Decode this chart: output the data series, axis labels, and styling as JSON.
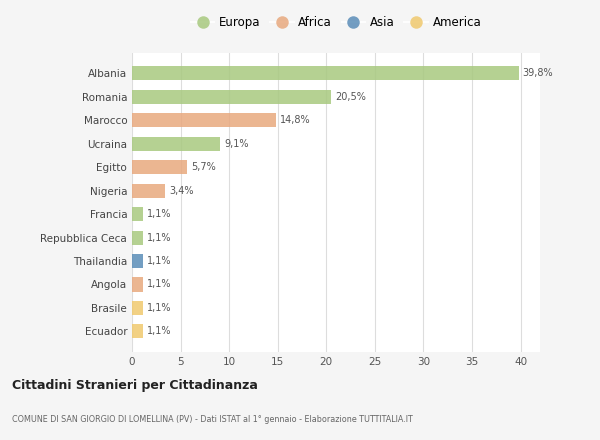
{
  "countries": [
    "Albania",
    "Romania",
    "Marocco",
    "Ucraina",
    "Egitto",
    "Nigeria",
    "Francia",
    "Repubblica Ceca",
    "Thailandia",
    "Angola",
    "Brasile",
    "Ecuador"
  ],
  "values": [
    39.8,
    20.5,
    14.8,
    9.1,
    5.7,
    3.4,
    1.1,
    1.1,
    1.1,
    1.1,
    1.1,
    1.1
  ],
  "labels": [
    "39,8%",
    "20,5%",
    "14,8%",
    "9,1%",
    "5,7%",
    "3,4%",
    "1,1%",
    "1,1%",
    "1,1%",
    "1,1%",
    "1,1%",
    "1,1%"
  ],
  "continent": [
    "Europa",
    "Europa",
    "Africa",
    "Europa",
    "Africa",
    "Africa",
    "Europa",
    "Europa",
    "Asia",
    "Africa",
    "America",
    "America"
  ],
  "colors": {
    "Europa": "#a8c97f",
    "Africa": "#e8a97e",
    "Asia": "#5b8db8",
    "America": "#f0c96e"
  },
  "legend_order": [
    "Europa",
    "Africa",
    "Asia",
    "America"
  ],
  "title": "Cittadini Stranieri per Cittadinanza",
  "subtitle": "COMUNE DI SAN GIORGIO DI LOMELLINA (PV) - Dati ISTAT al 1° gennaio - Elaborazione TUTTITALIA.IT",
  "xlim": [
    0,
    42
  ],
  "xticks": [
    0,
    5,
    10,
    15,
    20,
    25,
    30,
    35,
    40
  ],
  "background_color": "#f5f5f5",
  "bar_background_color": "#ffffff"
}
